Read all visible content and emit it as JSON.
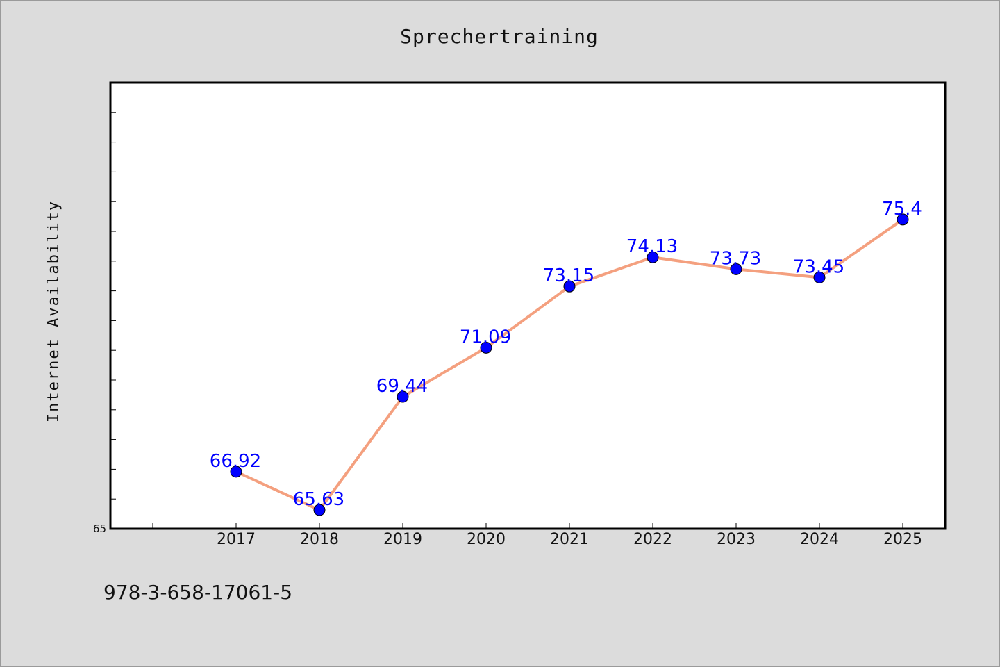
{
  "chart_data": {
    "type": "line",
    "title": "Sprechertraining",
    "xlabel": "",
    "ylabel": "Internet Availability",
    "categories": [
      "2017",
      "2018",
      "2019",
      "2020",
      "2021",
      "2022",
      "2023",
      "2024",
      "2025"
    ],
    "series": [
      {
        "values": [
          66.92,
          65.63,
          69.44,
          71.09,
          73.15,
          74.13,
          73.73,
          73.45,
          75.4
        ]
      }
    ],
    "data_labels": [
      "66.92",
      "65.63",
      "69.44",
      "71.09",
      "73.15",
      "74.13",
      "73.73",
      "73.45",
      "75.4"
    ],
    "ylim": [
      65,
      80
    ],
    "y_tick_labels": [
      "65"
    ],
    "grid": false,
    "legend": "none",
    "colors": {
      "line": "#f4a07f",
      "marker": "#0000ff",
      "label": "#0000ff",
      "background": "#dcdcdc",
      "plot_background": "#ffffff"
    }
  },
  "footer": {
    "isbn": "978-3-658-17061-5"
  }
}
